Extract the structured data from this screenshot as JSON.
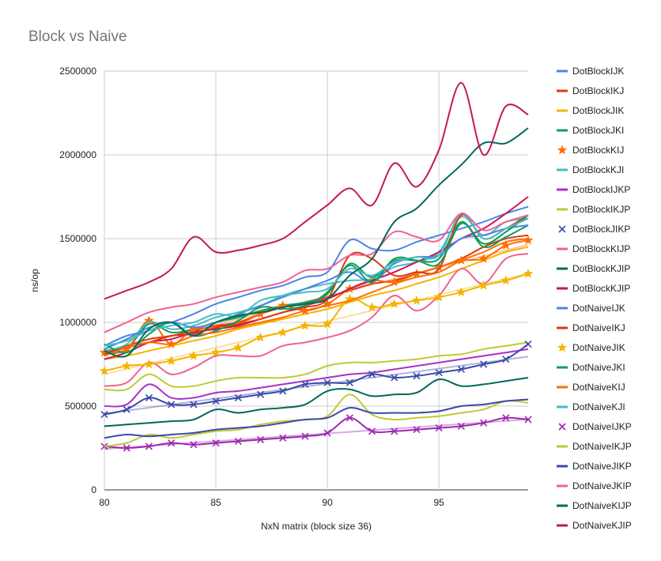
{
  "chart_data": {
    "type": "line",
    "title": "Block vs Naive",
    "xlabel": "NxN matrix (block size 36)",
    "ylabel": "ns/op",
    "xlim": [
      80,
      99
    ],
    "ylim": [
      0,
      2500000
    ],
    "xticks": [
      80,
      85,
      90,
      95
    ],
    "yticks": [
      0,
      500000,
      1000000,
      1500000,
      2000000,
      2500000
    ],
    "grid": true,
    "legend_position": "right",
    "x": [
      80,
      81,
      82,
      83,
      84,
      85,
      86,
      87,
      88,
      89,
      90,
      91,
      92,
      93,
      94,
      95,
      96,
      97,
      98,
      99
    ],
    "series": [
      {
        "name": "DotBlockIJK",
        "color": "#4a86e8",
        "marker": "none",
        "values": [
          840000,
          900000,
          970000,
          1000000,
          1050000,
          1110000,
          1150000,
          1190000,
          1220000,
          1270000,
          1300000,
          1490000,
          1440000,
          1430000,
          1480000,
          1520000,
          1560000,
          1600000,
          1650000,
          1690000
        ]
      },
      {
        "name": "DotBlockIKJ",
        "color": "#dc3912",
        "marker": "none",
        "values": [
          820000,
          860000,
          900000,
          920000,
          950000,
          980000,
          1000000,
          1050000,
          1090000,
          1110000,
          1150000,
          1190000,
          1230000,
          1250000,
          1290000,
          1330000,
          1380000,
          1450000,
          1500000,
          1520000
        ]
      },
      {
        "name": "DotBlockJIK",
        "color": "#f4b400",
        "marker": "none",
        "values": [
          780000,
          800000,
          830000,
          860000,
          890000,
          920000,
          960000,
          990000,
          1020000,
          1050000,
          1080000,
          1120000,
          1160000,
          1190000,
          1230000,
          1270000,
          1320000,
          1370000,
          1420000,
          1450000
        ]
      },
      {
        "name": "DotBlockJKI",
        "color": "#0f9d58",
        "marker": "none",
        "values": [
          810000,
          840000,
          990000,
          940000,
          960000,
          1000000,
          1030000,
          1070000,
          1100000,
          1120000,
          1170000,
          1350000,
          1270000,
          1370000,
          1370000,
          1380000,
          1600000,
          1450000,
          1510000,
          1580000
        ]
      },
      {
        "name": "DotBlockKIJ",
        "color": "#ff6d00",
        "marker": "star",
        "values": [
          820000,
          840000,
          1010000,
          870000,
          960000,
          960000,
          990000,
          1050000,
          1100000,
          1070000,
          1110000,
          1200000,
          1250000,
          1240000,
          1290000,
          1330000,
          1370000,
          1380000,
          1460000,
          1490000
        ]
      },
      {
        "name": "DotBlockKJI",
        "color": "#46bdc6",
        "marker": "none",
        "values": [
          830000,
          870000,
          1000000,
          960000,
          980000,
          1030000,
          1060000,
          1100000,
          1160000,
          1200000,
          1230000,
          1250000,
          1260000,
          1330000,
          1360000,
          1420000,
          1630000,
          1520000,
          1600000,
          1620000
        ]
      },
      {
        "name": "DotBlockIJKP",
        "color": "#ab30c4",
        "marker": "none",
        "values": [
          500000,
          510000,
          630000,
          550000,
          550000,
          580000,
          590000,
          610000,
          630000,
          650000,
          670000,
          690000,
          700000,
          720000,
          740000,
          760000,
          780000,
          800000,
          820000,
          840000
        ]
      },
      {
        "name": "DotBlockIKJP",
        "color": "#c0ca33",
        "marker": "none",
        "values": [
          600000,
          600000,
          690000,
          620000,
          620000,
          650000,
          670000,
          670000,
          670000,
          690000,
          740000,
          760000,
          760000,
          770000,
          780000,
          800000,
          810000,
          840000,
          860000,
          880000
        ]
      },
      {
        "name": "DotBlockJIKP",
        "color": "#3949ab",
        "marker": "x",
        "values": [
          450000,
          480000,
          550000,
          510000,
          510000,
          530000,
          550000,
          570000,
          590000,
          630000,
          640000,
          640000,
          690000,
          670000,
          680000,
          700000,
          720000,
          750000,
          780000,
          870000
        ]
      },
      {
        "name": "DotBlockKIJP",
        "color": "#f06292",
        "marker": "none",
        "values": [
          620000,
          640000,
          760000,
          690000,
          730000,
          800000,
          800000,
          800000,
          860000,
          880000,
          910000,
          950000,
          1030000,
          1160000,
          1070000,
          1160000,
          1320000,
          1230000,
          1380000,
          1410000
        ]
      },
      {
        "name": "DotBlockKJIP",
        "color": "#00695c",
        "marker": "none",
        "values": [
          380000,
          390000,
          400000,
          410000,
          420000,
          480000,
          460000,
          480000,
          490000,
          510000,
          590000,
          600000,
          560000,
          570000,
          580000,
          660000,
          620000,
          630000,
          650000,
          670000
        ]
      },
      {
        "name": "DotBlockKJIP",
        "color": "#c2185b",
        "marker": "none",
        "values": [
          780000,
          820000,
          880000,
          900000,
          940000,
          960000,
          980000,
          1020000,
          1060000,
          1100000,
          1140000,
          1200000,
          1250000,
          1300000,
          1360000,
          1420000,
          1500000,
          1560000,
          1650000,
          1750000
        ]
      },
      {
        "name": "DotNaiveIJK",
        "color": "#4a86e8",
        "marker": "none",
        "values": [
          860000,
          920000,
          950000,
          1000000,
          970000,
          1000000,
          1050000,
          1100000,
          1150000,
          1200000,
          1250000,
          1300000,
          1240000,
          1350000,
          1390000,
          1400000,
          1500000,
          1520000,
          1560000,
          1580000
        ]
      },
      {
        "name": "DotNaiveIKJ",
        "color": "#dc3912",
        "marker": "none",
        "values": [
          810000,
          850000,
          880000,
          920000,
          930000,
          970000,
          990000,
          1020000,
          1060000,
          1090000,
          1140000,
          1400000,
          1380000,
          1280000,
          1300000,
          1320000,
          1640000,
          1500000,
          1560000,
          1640000
        ]
      },
      {
        "name": "DotNaiveJIK",
        "color": "#f4b400",
        "marker": "star",
        "values": [
          710000,
          740000,
          750000,
          770000,
          800000,
          820000,
          850000,
          910000,
          940000,
          980000,
          990000,
          1140000,
          1090000,
          1110000,
          1130000,
          1150000,
          1180000,
          1220000,
          1250000,
          1290000
        ]
      },
      {
        "name": "DotNaiveJKI",
        "color": "#0f9d58",
        "marker": "none",
        "values": [
          870000,
          820000,
          930000,
          1000000,
          920000,
          950000,
          1010000,
          1090000,
          1080000,
          1100000,
          1180000,
          1340000,
          1240000,
          1380000,
          1370000,
          1350000,
          1590000,
          1470000,
          1540000,
          1640000
        ]
      },
      {
        "name": "DotNaiveKIJ",
        "color": "#ff6d00",
        "marker": "none",
        "values": [
          800000,
          850000,
          880000,
          870000,
          920000,
          940000,
          970000,
          1000000,
          1030000,
          1070000,
          1100000,
          1130000,
          1180000,
          1230000,
          1270000,
          1300000,
          1370000,
          1420000,
          1480000,
          1500000
        ]
      },
      {
        "name": "DotNaiveKJI",
        "color": "#46bdc6",
        "marker": "none",
        "values": [
          860000,
          890000,
          950000,
          980000,
          1000000,
          1050000,
          1040000,
          1130000,
          1160000,
          1180000,
          1200000,
          1320000,
          1280000,
          1360000,
          1390000,
          1400000,
          1650000,
          1500000,
          1560000,
          1620000
        ]
      },
      {
        "name": "DotNaiveIJKP",
        "color": "#9c27b0",
        "marker": "x",
        "values": [
          260000,
          250000,
          260000,
          280000,
          270000,
          280000,
          290000,
          300000,
          310000,
          320000,
          340000,
          430000,
          350000,
          350000,
          360000,
          370000,
          380000,
          400000,
          430000,
          420000
        ]
      },
      {
        "name": "DotNaiveIKJP",
        "color": "#c0ca33",
        "marker": "none",
        "values": [
          260000,
          280000,
          330000,
          310000,
          330000,
          350000,
          360000,
          390000,
          410000,
          420000,
          440000,
          570000,
          450000,
          420000,
          430000,
          440000,
          460000,
          480000,
          530000,
          520000
        ]
      },
      {
        "name": "DotNaiveJIKP",
        "color": "#3949ab",
        "marker": "none",
        "values": [
          310000,
          330000,
          320000,
          330000,
          340000,
          360000,
          370000,
          380000,
          400000,
          420000,
          430000,
          490000,
          460000,
          460000,
          460000,
          470000,
          500000,
          510000,
          530000,
          540000
        ]
      },
      {
        "name": "DotNaiveJKIP",
        "color": "#f06292",
        "marker": "none",
        "values": [
          940000,
          1000000,
          1060000,
          1090000,
          1110000,
          1150000,
          1180000,
          1210000,
          1240000,
          1310000,
          1320000,
          1400000,
          1410000,
          1540000,
          1510000,
          1490000,
          1650000,
          1550000,
          1600000,
          1640000
        ]
      },
      {
        "name": "DotNaiveKIJP",
        "color": "#00695c",
        "marker": "none",
        "values": [
          830000,
          800000,
          960000,
          1000000,
          920000,
          1000000,
          1040000,
          1060000,
          1090000,
          1110000,
          1140000,
          1280000,
          1380000,
          1600000,
          1680000,
          1820000,
          1940000,
          2070000,
          2070000,
          2160000
        ]
      },
      {
        "name": "DotNaiveKJIP",
        "color": "#c2185b",
        "marker": "none",
        "values": [
          1140000,
          1190000,
          1240000,
          1320000,
          1510000,
          1420000,
          1430000,
          1460000,
          1500000,
          1600000,
          1700000,
          1800000,
          1700000,
          1950000,
          1810000,
          2030000,
          2430000,
          2000000,
          2290000,
          2240000
        ]
      }
    ]
  }
}
